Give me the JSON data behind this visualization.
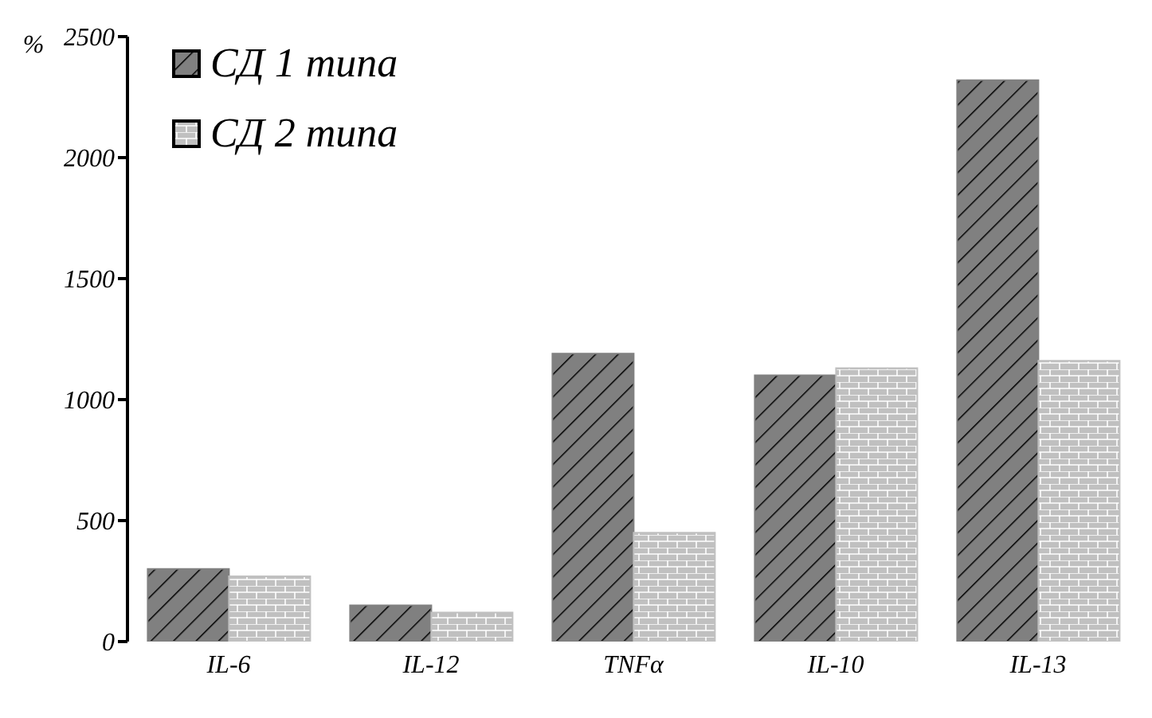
{
  "chart_data": {
    "type": "bar",
    "ylabel": "%",
    "categories": [
      "IL-6",
      "IL-12",
      "TNFα",
      "IL-10",
      "IL-13"
    ],
    "series": [
      {
        "name": "СД 1 типа",
        "color": "#808080",
        "values": [
          300,
          150,
          1190,
          1100,
          2320
        ]
      },
      {
        "name": "СД 2 типа",
        "color": "#c0c0c0",
        "values": [
          270,
          120,
          450,
          1130,
          1160
        ]
      }
    ],
    "ylim": [
      0,
      2500
    ],
    "yticks": [
      0,
      500,
      1000,
      1500,
      2000,
      2500
    ],
    "grid": false,
    "legend": "top left"
  }
}
